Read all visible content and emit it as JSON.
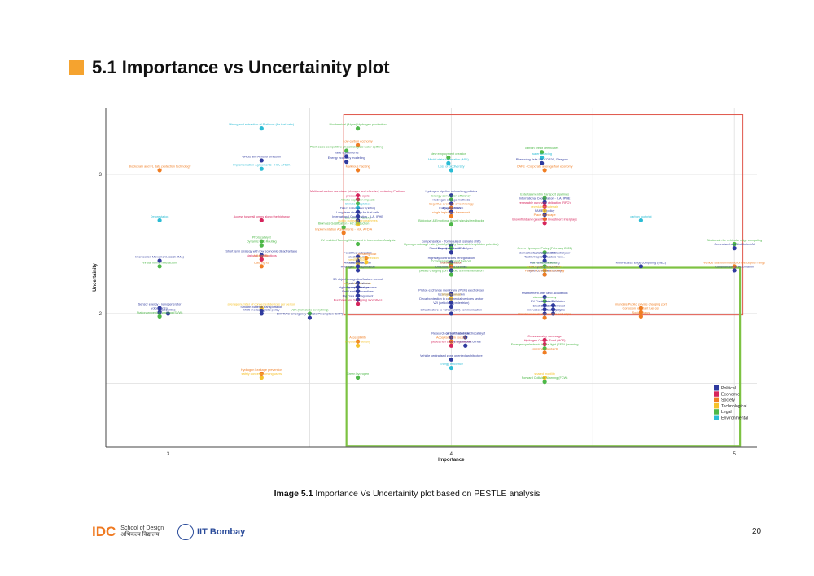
{
  "page": {
    "title": "5.1 Importance vs Uncertainity plot",
    "caption_bold": "Image 5.1",
    "caption_rest": "Importance Vs Uncertainity plot based on PESTLE analysis",
    "page_number": "20",
    "logo_idc": "IDC",
    "logo_idc_sub1": "School of Design",
    "logo_idc_sub2": "अभिकल्प विद्यालय",
    "logo_iit": "IIT Bombay"
  },
  "colors": {
    "Political": "#2f3a9e",
    "Economic": "#d6245c",
    "Society": "#f07d22",
    "Technological": "#f5c22b",
    "Legal": "#4db848",
    "Environmental": "#2bbcd4",
    "grid": "#dddddd",
    "axis": "#444444",
    "red_box": "#e0564a",
    "green_box": "#7dc242"
  },
  "chart_data": {
    "type": "scatter",
    "xlabel": "Importance",
    "ylabel": "Uncertainity",
    "xlim": [
      2.78,
      5.08
    ],
    "ylim": [
      1.04,
      3.48
    ],
    "x_ticks": [
      3,
      4,
      5
    ],
    "y_ticks": [
      2,
      3
    ],
    "legend": [
      "Political",
      "Economic",
      "Society",
      "Technological",
      "Legal",
      "Environmental"
    ],
    "legend_position": "bottom-right",
    "regions": [
      {
        "name": "high-importance-high-uncertainty",
        "color": "red",
        "x": [
          3.62,
          5.03
        ],
        "y": [
          1.99,
          3.43
        ]
      },
      {
        "name": "high-importance-low-uncertainty",
        "color": "green",
        "x": [
          3.63,
          5.02
        ],
        "y": [
          1.05,
          2.33
        ]
      }
    ],
    "points": [
      {
        "x": 3.33,
        "y": 3.33,
        "cat": "Environmental",
        "label": "Mining and extraction of Platinum (for fuel cells)"
      },
      {
        "x": 3.67,
        "y": 3.33,
        "cat": "Legal",
        "label": "Biochemical (Algae) Hydrogen production"
      },
      {
        "x": 3.67,
        "y": 3.21,
        "cat": "Society",
        "label": "Low-carbon economy"
      },
      {
        "x": 3.63,
        "y": 3.17,
        "cat": "Legal",
        "label": "Plant-scale-competitive photobiological water splitting"
      },
      {
        "x": 3.63,
        "y": 3.13,
        "cat": "Political",
        "label": "trade agreements"
      },
      {
        "x": 3.63,
        "y": 3.09,
        "cat": "Political",
        "label": "Energy economy modelling"
      },
      {
        "x": 3.67,
        "y": 3.03,
        "cat": "Society",
        "label": "Malicious hacking"
      },
      {
        "x": 4.0,
        "y": 3.03,
        "cat": "Environmental",
        "label": "Loss of biodiversity"
      },
      {
        "x": 3.99,
        "y": 3.12,
        "cat": "Legal",
        "label": "New employment creation"
      },
      {
        "x": 3.99,
        "y": 3.08,
        "cat": "Environmental",
        "label": "Model state information (MSI)"
      },
      {
        "x": 4.33,
        "y": 3.03,
        "cat": "Society",
        "label": "CAFE - Corporate average fuel economy"
      },
      {
        "x": 4.32,
        "y": 3.16,
        "cat": "Legal",
        "label": "carbon credit certificates"
      },
      {
        "x": 4.32,
        "y": 3.12,
        "cat": "Environmental",
        "label": "water sourcing"
      },
      {
        "x": 4.32,
        "y": 3.08,
        "cat": "Political",
        "label": "Phasoning risks.UN COP26, Glasgow"
      },
      {
        "x": 3.33,
        "y": 3.04,
        "cat": "Environmental",
        "label": "Implementation Agreements - HIA, AFDIA"
      },
      {
        "x": 3.33,
        "y": 3.1,
        "cat": "Political",
        "label": "GHGs and Aerosol emission"
      },
      {
        "x": 2.97,
        "y": 3.03,
        "cat": "Society",
        "label": "Blockchain and FL data protection technology"
      },
      {
        "x": 3.67,
        "y": 2.85,
        "cat": "Economic",
        "label": "Multi wall carbon nanotube (cheaper and effective) replacing Platinum"
      },
      {
        "x": 3.67,
        "y": 2.66,
        "cat": "Legal",
        "label": "Eco-Smart Parking"
      },
      {
        "x": 3.67,
        "y": 2.82,
        "cat": "Economic",
        "label": "product life cycle"
      },
      {
        "x": 3.67,
        "y": 2.79,
        "cat": "Legal",
        "label": "Abiotic depletion impacts"
      },
      {
        "x": 3.67,
        "y": 2.76,
        "cat": "Environmental",
        "label": "Climate adaptation"
      },
      {
        "x": 3.67,
        "y": 2.73,
        "cat": "Political",
        "label": "Direct solar water splitting"
      },
      {
        "x": 3.67,
        "y": 2.7,
        "cat": "Political",
        "label": "Long term strategy for fuel cells"
      },
      {
        "x": 3.67,
        "y": 2.67,
        "cat": "Political",
        "label": "International Cooperation - ILA, IPHE"
      },
      {
        "x": 3.67,
        "y": 2.64,
        "cat": "Technological",
        "label": "public outreach programmes"
      },
      {
        "x": 3.62,
        "y": 2.62,
        "cat": "Legal",
        "label": "Biomass Gasification - H2 production"
      },
      {
        "x": 3.62,
        "y": 2.58,
        "cat": "Society",
        "label": "Implementation Agreements - HIA, AFDIA"
      },
      {
        "x": 3.33,
        "y": 2.67,
        "cat": "Economic",
        "label": "Access to small towns along the highway"
      },
      {
        "x": 2.97,
        "y": 2.67,
        "cat": "Environmental",
        "label": "Deforestation"
      },
      {
        "x": 4.0,
        "y": 2.85,
        "cat": "Political",
        "label": "Hydrogen pipeline networking policies"
      },
      {
        "x": 4.0,
        "y": 2.82,
        "cat": "Legal",
        "label": "Energy conversion efficiency"
      },
      {
        "x": 4.0,
        "y": 2.79,
        "cat": "Political",
        "label": "Hydrogen storage methods"
      },
      {
        "x": 4.0,
        "y": 2.76,
        "cat": "Society",
        "label": "Cognitive overload of technology"
      },
      {
        "x": 4.0,
        "y": 2.73,
        "cat": "Political",
        "label": "Ecology concerns"
      },
      {
        "x": 4.0,
        "y": 2.73,
        "cat": "Political",
        "label": "Agenda 2030"
      },
      {
        "x": 4.0,
        "y": 2.7,
        "cat": "Society",
        "label": "single legislative framework"
      },
      {
        "x": 4.0,
        "y": 2.64,
        "cat": "Legal",
        "label": "Biological & Emotional based signals/feedbacks"
      },
      {
        "x": 4.33,
        "y": 2.83,
        "cat": "Legal",
        "label": "Entertainment in transport pipelines"
      },
      {
        "x": 4.33,
        "y": 2.8,
        "cat": "Political",
        "label": "International Cooperation - ILA, IPHE"
      },
      {
        "x": 4.33,
        "y": 2.77,
        "cat": "Economic",
        "label": "renewable purchase obligation (RPO)"
      },
      {
        "x": 4.33,
        "y": 2.74,
        "cat": "Technological",
        "label": "recyclable materials"
      },
      {
        "x": 4.33,
        "y": 2.71,
        "cat": "Political",
        "label": "FAME II policy"
      },
      {
        "x": 4.33,
        "y": 2.68,
        "cat": "Society",
        "label": "Place of escape"
      },
      {
        "x": 4.33,
        "y": 2.65,
        "cat": "Economic",
        "label": "Brownfield and greenfield investment interplays"
      },
      {
        "x": 4.67,
        "y": 2.67,
        "cat": "Environmental",
        "label": "carbon footprint"
      },
      {
        "x": 3.33,
        "y": 2.52,
        "cat": "Legal",
        "label": "Photocatalyst"
      },
      {
        "x": 3.33,
        "y": 2.49,
        "cat": "Legal",
        "label": "Dynamic Eco-Routing"
      },
      {
        "x": 3.67,
        "y": 2.5,
        "cat": "Legal",
        "label": "CV enabled Turning Movement & Intersection Analysis"
      },
      {
        "x": 4.0,
        "y": 2.49,
        "cat": "Political",
        "label": "compensation - (for required scenario shift)"
      },
      {
        "x": 4.0,
        "y": 2.47,
        "cat": "Legal",
        "label": "Hydrogen storage risks (toxicity/highly flammable/explosion potential)"
      },
      {
        "x": 4.0,
        "y": 2.44,
        "cat": "Political",
        "label": "Deployment of IPv6"
      },
      {
        "x": 4.0,
        "y": 2.44,
        "cat": "Political",
        "label": "Fiscal incentives for electrolyser"
      },
      {
        "x": 5.0,
        "y": 2.5,
        "cat": "Legal",
        "label": "Blockchain for vehicular edge computing"
      },
      {
        "x": 5.0,
        "y": 2.47,
        "cat": "Political",
        "label": "Centralised and distributed AI"
      },
      {
        "x": 2.97,
        "y": 2.34,
        "cat": "Legal",
        "label": "Virtual human interaction"
      },
      {
        "x": 2.97,
        "y": 2.38,
        "cat": "Political",
        "label": "Intersection Movement Assist (IMA)"
      },
      {
        "x": 3.33,
        "y": 2.34,
        "cat": "Society",
        "label": "Data rights"
      },
      {
        "x": 3.33,
        "y": 2.42,
        "cat": "Political",
        "label": "Short term strategy with low economic disadvantage"
      },
      {
        "x": 3.33,
        "y": 2.39,
        "cat": "Technological",
        "label": "Affordability"
      },
      {
        "x": 3.33,
        "y": 2.39,
        "cat": "Economic",
        "label": "National Certifications"
      },
      {
        "x": 3.67,
        "y": 2.41,
        "cat": "Political",
        "label": "Fossil fuel extraction"
      },
      {
        "x": 3.67,
        "y": 2.38,
        "cat": "Political",
        "label": "electricity mix"
      },
      {
        "x": 3.67,
        "y": 2.36,
        "cat": "Technological",
        "label": "vehicle repair"
      },
      {
        "x": 3.67,
        "y": 2.34,
        "cat": "Political",
        "label": "Alkaline electrolyser"
      },
      {
        "x": 3.67,
        "y": 2.34,
        "cat": "Political",
        "label": "data privacy"
      },
      {
        "x": 3.67,
        "y": 2.31,
        "cat": "Political",
        "label": "Hydrogen Transportation"
      },
      {
        "x": 3.7,
        "y": 2.4,
        "cat": "Society",
        "label": "Operating cost"
      },
      {
        "x": 3.7,
        "y": 2.37,
        "cat": "Technological",
        "label": "Context detection"
      },
      {
        "x": 4.0,
        "y": 2.37,
        "cat": "Political",
        "label": "Highway contractors renegotiation"
      },
      {
        "x": 4.0,
        "y": 2.35,
        "cat": "Legal",
        "label": "Commercialization of fuel cell"
      },
      {
        "x": 4.0,
        "y": 2.34,
        "cat": "Political",
        "label": "Full Automation"
      },
      {
        "x": 4.0,
        "y": 2.34,
        "cat": "Society",
        "label": "Standardization"
      },
      {
        "x": 4.0,
        "y": 2.31,
        "cat": "Political",
        "label": "Off shore wind turbines"
      },
      {
        "x": 4.0,
        "y": 2.28,
        "cat": "Legal",
        "label": "private charging port - public & implementation"
      },
      {
        "x": 4.33,
        "y": 2.44,
        "cat": "Legal",
        "label": "Green Hydrogen Policy (February 2022)"
      },
      {
        "x": 4.33,
        "y": 2.41,
        "cat": "Political",
        "label": "Land acquisition"
      },
      {
        "x": 4.33,
        "y": 2.41,
        "cat": "Political",
        "label": "domestic manufacture of Electrolyser"
      },
      {
        "x": 4.33,
        "y": 2.38,
        "cat": "Political",
        "label": "Tactile/Haptic actuators Text:.."
      },
      {
        "x": 4.33,
        "y": 2.34,
        "cat": "Political",
        "label": "Rain water harvesting"
      },
      {
        "x": 4.33,
        "y": 2.34,
        "cat": "Legal",
        "label": "RTC Renewables"
      },
      {
        "x": 4.33,
        "y": 2.31,
        "cat": "Political",
        "label": "Life Cycle Assessment"
      },
      {
        "x": 4.33,
        "y": 2.31,
        "cat": "Technological",
        "label": "make-to-non-auto-vendors"
      },
      {
        "x": 4.33,
        "y": 2.28,
        "cat": "Political",
        "label": "Hyper connected society"
      },
      {
        "x": 4.33,
        "y": 2.28,
        "cat": "Society",
        "label": "Fusion of art and Technology"
      },
      {
        "x": 4.67,
        "y": 2.34,
        "cat": "Political",
        "label": "Multi-access Edge computing (MEC)"
      },
      {
        "x": 5.0,
        "y": 2.34,
        "cat": "Society",
        "label": "Vehicle attention/interaction perception range"
      },
      {
        "x": 5.0,
        "y": 2.31,
        "cat": "Political",
        "label": "Conditional/High Automation"
      },
      {
        "x": 3.67,
        "y": 2.22,
        "cat": "Political",
        "label": "3D object recognition/feature control"
      },
      {
        "x": 3.67,
        "y": 2.19,
        "cat": "Technological",
        "label": "recyclable materials"
      },
      {
        "x": 3.67,
        "y": 2.19,
        "cat": "Political",
        "label": "Crash regulations"
      },
      {
        "x": 3.67,
        "y": 2.16,
        "cat": "Political",
        "label": "Decarbonization"
      },
      {
        "x": 3.67,
        "y": 2.16,
        "cat": "Political",
        "label": "highway expansion process"
      },
      {
        "x": 3.67,
        "y": 2.13,
        "cat": "Political",
        "label": "Refill station incentives"
      },
      {
        "x": 3.67,
        "y": 2.1,
        "cat": "Political",
        "label": "Big Data management"
      },
      {
        "x": 3.67,
        "y": 2.07,
        "cat": "Economic",
        "label": "Purchase and Scrapping Incentives"
      },
      {
        "x": 3.5,
        "y": 2.0,
        "cat": "Legal",
        "label": "V2X (Vehicle to Everything)"
      },
      {
        "x": 3.5,
        "y": 1.97,
        "cat": "Political",
        "label": "EMTRAC Emergency Vehicle Preemption (EVP)"
      },
      {
        "x": 4.0,
        "y": 2.14,
        "cat": "Political",
        "label": "Proton exchange membrane (PEM) electrolyser"
      },
      {
        "x": 4.0,
        "y": 2.11,
        "cat": "Political",
        "label": "location information"
      },
      {
        "x": 4.0,
        "y": 2.11,
        "cat": "Technological",
        "label": "tangible value"
      },
      {
        "x": 4.0,
        "y": 2.08,
        "cat": "Political",
        "label": "Decarbonisation in commercial vehicles sector"
      },
      {
        "x": 4.0,
        "y": 2.05,
        "cat": "Political",
        "label": "V2I (vehicle to pedestrian)"
      },
      {
        "x": 4.0,
        "y": 2.0,
        "cat": "Political",
        "label": "infrastructure-to-vehicle (I2V) communication"
      },
      {
        "x": 4.33,
        "y": 2.12,
        "cat": "Political",
        "label": "resettlement after land acquisition"
      },
      {
        "x": 4.33,
        "y": 2.09,
        "cat": "Legal",
        "label": "circular economy"
      },
      {
        "x": 4.33,
        "y": 2.06,
        "cat": "Political",
        "label": "EV Fiscal Incentives"
      },
      {
        "x": 4.36,
        "y": 2.06,
        "cat": "Political",
        "label": "India's EV Vision"
      },
      {
        "x": 4.33,
        "y": 2.03,
        "cat": "Political",
        "label": "Electrolyser R&D"
      },
      {
        "x": 4.36,
        "y": 2.03,
        "cat": "Political",
        "label": "Electrolyser Cost"
      },
      {
        "x": 4.33,
        "y": 2.0,
        "cat": "Political",
        "label": "Innovation in Electrolysers"
      },
      {
        "x": 4.36,
        "y": 2.0,
        "cat": "Political",
        "label": "Photoelectrolysis"
      },
      {
        "x": 4.33,
        "y": 1.97,
        "cat": "Society",
        "label": "Maintenance of road surface and signs"
      },
      {
        "x": 4.67,
        "y": 2.04,
        "cat": "Society",
        "label": "mandate Public, private charging port"
      },
      {
        "x": 4.67,
        "y": 2.01,
        "cat": "Society",
        "label": "Corrosion resistant fuel cell"
      },
      {
        "x": 4.67,
        "y": 1.98,
        "cat": "Society",
        "label": "Social status"
      },
      {
        "x": 2.97,
        "y": 2.04,
        "cat": "Political",
        "label": "Sensor energy - nanogenerator"
      },
      {
        "x": 2.97,
        "y": 2.01,
        "cat": "Political",
        "label": "voice control"
      },
      {
        "x": 3.0,
        "y": 2.0,
        "cat": "Political",
        "label": "geopolitics"
      },
      {
        "x": 2.97,
        "y": 1.98,
        "cat": "Legal",
        "label": "Stationary vehicle warning (SVW)"
      },
      {
        "x": 3.33,
        "y": 2.04,
        "cat": "Technological",
        "label": "average number of connected devices per person"
      },
      {
        "x": 3.33,
        "y": 2.02,
        "cat": "Political",
        "label": "Smooth Material transportation"
      },
      {
        "x": 3.33,
        "y": 2.0,
        "cat": "Political",
        "label": "Multi modal Logistic policy"
      },
      {
        "x": 3.67,
        "y": 1.8,
        "cat": "Society",
        "label": "Accessibility"
      },
      {
        "x": 3.67,
        "y": 1.77,
        "cat": "Technological",
        "label": "Population density"
      },
      {
        "x": 4.0,
        "y": 1.83,
        "cat": "Political",
        "label": "Research on earth abundant"
      },
      {
        "x": 4.05,
        "y": 1.83,
        "cat": "Political",
        "label": "carbon based Electrocatalyst"
      },
      {
        "x": 4.0,
        "y": 1.8,
        "cat": "Society",
        "label": "Acceptance in society"
      },
      {
        "x": 4.0,
        "y": 1.77,
        "cat": "Economic",
        "label": "pedestrian safety regulations"
      },
      {
        "x": 4.05,
        "y": 1.77,
        "cat": "Political",
        "label": "core multimedia centre"
      },
      {
        "x": 4.33,
        "y": 1.81,
        "cat": "Economic",
        "label": "Cross subsidy surcharge"
      },
      {
        "x": 4.33,
        "y": 1.78,
        "cat": "Economic",
        "label": "Hydrogen Corpus Fund (HCF)"
      },
      {
        "x": 4.33,
        "y": 1.75,
        "cat": "Legal",
        "label": "Emergency electronic brake light (EEBL) warning"
      },
      {
        "x": 4.33,
        "y": 1.72,
        "cat": "Society",
        "label": "emission standards"
      },
      {
        "x": 4.0,
        "y": 1.67,
        "cat": "Political",
        "label": "Vehicle centralised zone oriented architecture"
      },
      {
        "x": 4.0,
        "y": 1.61,
        "cat": "Environmental",
        "label": "Energy efficiency"
      },
      {
        "x": 3.33,
        "y": 1.57,
        "cat": "Society",
        "label": "Hydrogen Leakage prevention"
      },
      {
        "x": 3.33,
        "y": 1.54,
        "cat": "Technological",
        "label": "safety concerns among users"
      },
      {
        "x": 3.67,
        "y": 1.54,
        "cat": "Legal",
        "label": "Green hydrogen"
      },
      {
        "x": 4.33,
        "y": 1.54,
        "cat": "Technological",
        "label": "shared mobility"
      },
      {
        "x": 4.33,
        "y": 1.51,
        "cat": "Legal",
        "label": "Forward Collision Warning (FCW)"
      }
    ]
  }
}
